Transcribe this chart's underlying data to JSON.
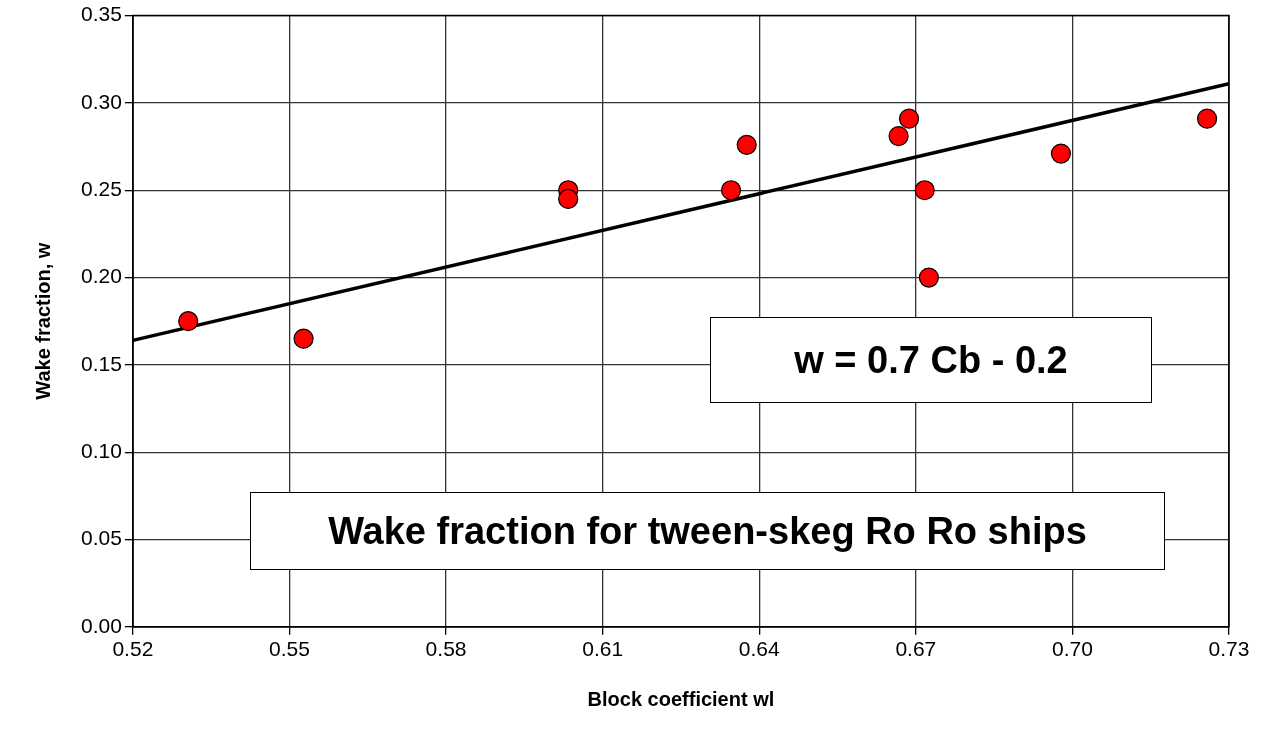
{
  "chart_data": {
    "type": "scatter",
    "xlabel": "Block coefficient wl",
    "ylabel": "Wake fraction, w",
    "x": [
      0.5306,
      0.5527,
      0.6034,
      0.6034,
      0.6346,
      0.6376,
      0.6667,
      0.6687,
      0.6717,
      0.6725,
      0.6978,
      0.7258
    ],
    "series": [
      {
        "type": "scatter",
        "color": "#ff0000",
        "marker": "circle",
        "values": [
          0.175,
          0.165,
          0.25,
          0.245,
          0.25,
          0.276,
          0.281,
          0.291,
          0.25,
          0.2,
          0.271,
          0.291
        ]
      },
      {
        "type": "line",
        "color": "#000000",
        "marker": "none",
        "line_style": "solid",
        "x": [
          0.52,
          0.73
        ],
        "values": [
          0.164,
          0.311
        ]
      }
    ],
    "xlim": [
      0.52,
      0.73
    ],
    "xticks": [
      0.52,
      0.55,
      0.58,
      0.61,
      0.64,
      0.67,
      {
        "value": 0.7,
        "label": "0.70"
      },
      0.73
    ],
    "ylim": [
      0,
      0.35
    ],
    "yticks": [
      {
        "value": 0,
        "label": "0.00"
      },
      0.05,
      {
        "value": 0.1,
        "label": "0.10"
      },
      0.15,
      {
        "value": 0.2,
        "label": "0.20"
      },
      0.25,
      {
        "value": 0.3,
        "label": "0.30"
      },
      0.35
    ],
    "grid": true,
    "legend": false,
    "annotations": [
      "w = 0.7 Cb - 0.2",
      "Wake fraction for tween-skeg Ro Ro ships"
    ]
  }
}
